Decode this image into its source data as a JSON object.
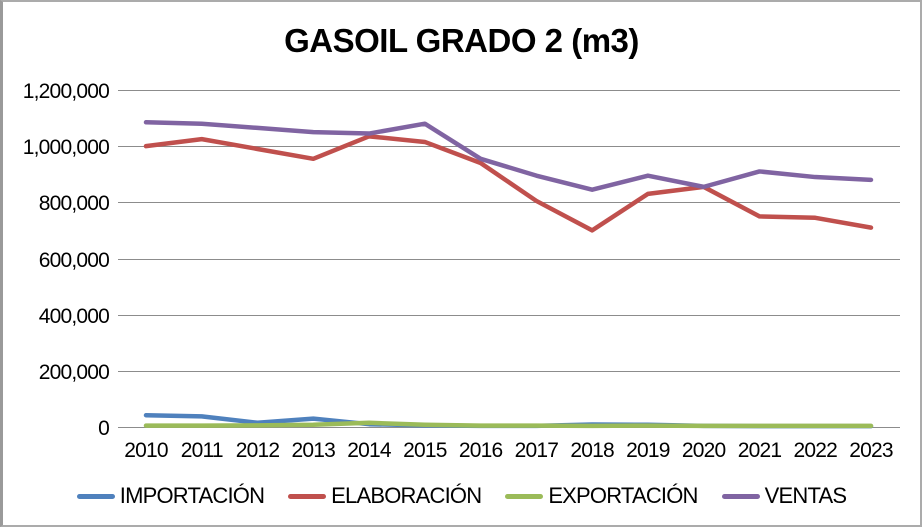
{
  "window": {
    "background_color": "#ffffff",
    "border_color": "#ababab"
  },
  "chart_data": {
    "type": "line",
    "title": "GASOIL GRADO 2 (m3)",
    "xlabel": "",
    "ylabel": "",
    "x": [
      "2010",
      "2011",
      "2012",
      "2013",
      "2014",
      "2015",
      "2016",
      "2017",
      "2018",
      "2019",
      "2020",
      "2021",
      "2022",
      "2023"
    ],
    "series": [
      {
        "name": "IMPORTACIÓN",
        "color": "#4F81BD",
        "values": [
          42000,
          38000,
          15000,
          30000,
          10000,
          6000,
          4000,
          4000,
          9000,
          8000,
          4000,
          3000,
          3000,
          3000
        ]
      },
      {
        "name": "ELABORACIÓN",
        "color": "#C0504D",
        "values": [
          1000000,
          1025000,
          990000,
          955000,
          1035000,
          1015000,
          940000,
          805000,
          700000,
          830000,
          855000,
          750000,
          745000,
          710000
        ]
      },
      {
        "name": "EXPORTACIÓN",
        "color": "#9BBB59",
        "values": [
          5000,
          5000,
          6000,
          8000,
          15000,
          8000,
          5000,
          5000,
          4000,
          5000,
          4000,
          4000,
          4000,
          4000
        ]
      },
      {
        "name": "VENTAS",
        "color": "#8064A2",
        "values": [
          1085000,
          1080000,
          1065000,
          1050000,
          1045000,
          1080000,
          955000,
          895000,
          845000,
          895000,
          855000,
          910000,
          890000,
          880000
        ]
      }
    ],
    "ylim": [
      0,
      1200000
    ],
    "ytick_values": [
      0,
      200000,
      400000,
      600000,
      800000,
      1000000,
      1200000
    ],
    "ytick_labels": [
      "0",
      "200,000",
      "400,000",
      "600,000",
      "800,000",
      "1,000,000",
      "1,200,000"
    ],
    "grid": true,
    "gridline_color": "#8c8c8c",
    "legend_position": "bottom",
    "line_width": 4.5
  }
}
